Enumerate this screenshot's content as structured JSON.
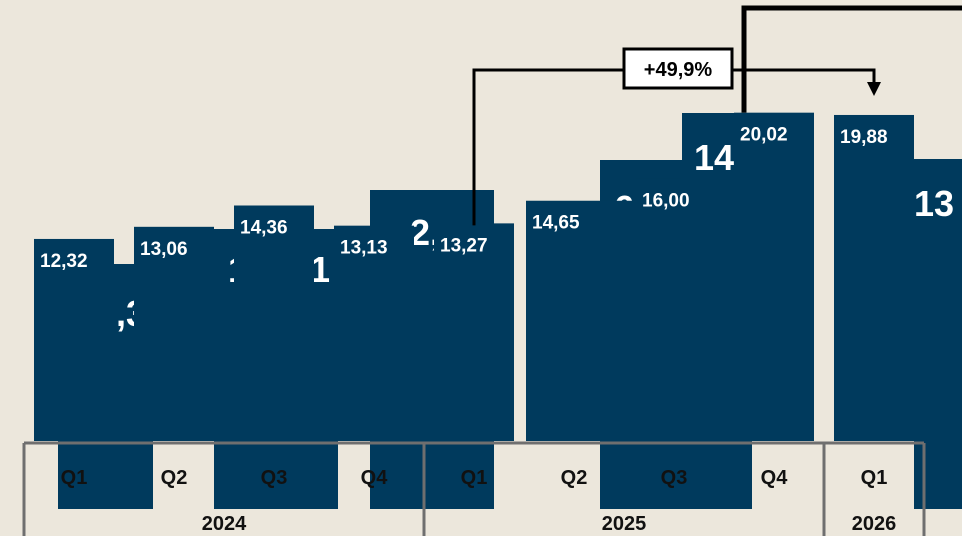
{
  "chart_data": {
    "type": "bar",
    "title": "",
    "xlabel": "",
    "ylabel": "",
    "ylim": [
      0,
      22
    ],
    "grid": false,
    "legend": "none",
    "bar_color": "#003a5d",
    "background": "#ece7dc",
    "categories": [
      "Q1",
      "Q2",
      "Q3",
      "Q4",
      "Q1",
      "Q2",
      "Q3",
      "Q4",
      "Q1"
    ],
    "years": [
      {
        "label": "2024",
        "quarters": 4
      },
      {
        "label": "2025",
        "quarters": 4
      },
      {
        "label": "2026",
        "quarters": 1
      }
    ],
    "values": [
      12.32,
      13.06,
      14.36,
      13.13,
      13.27,
      14.65,
      16.0,
      20.02,
      19.88
    ],
    "value_labels": [
      "12,32",
      "13,06",
      "14,36",
      "13,13",
      "13,27",
      "14,65",
      "16,00",
      "20,02",
      "19,88"
    ],
    "annotation": {
      "text": "+49,9%",
      "from_index": 4,
      "to_index": 8
    },
    "background_artifacts": [
      ",3",
      "1",
      "1",
      "2,",
      "6",
      "14",
      "13"
    ]
  }
}
